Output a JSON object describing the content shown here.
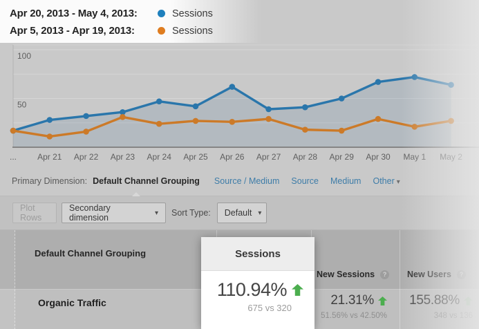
{
  "legend": {
    "series": [
      {
        "date_range": "Apr 20, 2013 - May 4, 2013:",
        "label": "Sessions",
        "color": "#1f80bd"
      },
      {
        "date_range": "Apr 5, 2013 - Apr 19, 2013:",
        "label": "Sessions",
        "color": "#df7d20"
      }
    ]
  },
  "chart_data": {
    "type": "line",
    "x": [
      "...",
      "Apr 21",
      "Apr 22",
      "Apr 23",
      "Apr 24",
      "Apr 25",
      "Apr 26",
      "Apr 27",
      "Apr 28",
      "Apr 29",
      "Apr 30",
      "May 1",
      "May 2"
    ],
    "series": [
      {
        "name": "Sessions (Apr 20, 2013 - May 4, 2013)",
        "color": "#2a76ab",
        "area": true,
        "values": [
          17,
          28,
          32,
          36,
          47,
          42,
          62,
          39,
          41,
          50,
          67,
          72,
          64
        ]
      },
      {
        "name": "Sessions (Apr 5, 2013 - Apr 19, 2013)",
        "color": "#cc7a28",
        "area": false,
        "values": [
          17,
          11,
          16,
          31,
          24,
          27,
          26,
          29,
          18,
          17,
          29,
          21,
          27
        ]
      }
    ],
    "title": "",
    "xlabel": "",
    "ylabel": "",
    "ylim": [
      0,
      100
    ],
    "yticks_labeled": [
      50,
      100
    ],
    "gridlines": [
      25,
      50,
      75,
      100
    ],
    "grid": true,
    "legend_position": "top-left"
  },
  "primary_dimension": {
    "label": "Primary Dimension:",
    "selected": "Default Channel Grouping",
    "links": [
      "Source / Medium",
      "Source",
      "Medium"
    ],
    "more_label": "Other"
  },
  "toolbar": {
    "plot_rows_label": "Plot Rows",
    "secondary_dimension_label": "Secondary dimension",
    "sort_type_label": "Sort Type:",
    "sort_type_value": "Default"
  },
  "table": {
    "dimension_header": "Default Channel Grouping",
    "row_label": "Organic Traffic",
    "columns": [
      {
        "label": "New Sessions",
        "value": "21.31%",
        "trend": "up",
        "comparison": "51.56% vs 42.50%"
      },
      {
        "label": "New Users",
        "value": "155.88%",
        "trend": "up",
        "comparison": "348 vs 136"
      }
    ]
  },
  "callout": {
    "header": "Sessions",
    "value": "110.94%",
    "trend": "up",
    "comparison": "675 vs 320"
  },
  "colors": {
    "series_current": "#2a76ab",
    "series_previous": "#cc7a28",
    "positive_green": "#4cae4f",
    "link_blue": "#3d7ca8"
  }
}
